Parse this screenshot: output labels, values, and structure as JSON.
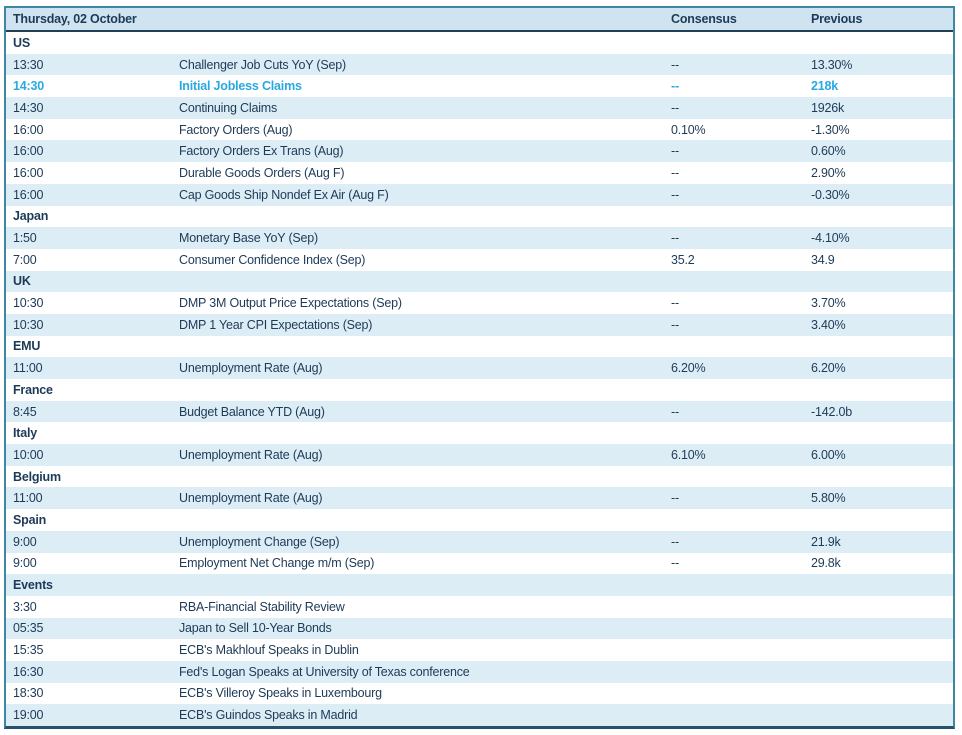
{
  "table": {
    "header": {
      "date": "Thursday, 02 October",
      "consensus": "Consensus",
      "previous": "Previous"
    },
    "colors": {
      "text": "#1d3a57",
      "highlight_text": "#29a9e1",
      "row_alt_bg": "#dcedf6",
      "header_bg": "#cfe4f0",
      "frame_border": "#3d87a0",
      "header_rule": "#1e3f54"
    },
    "rows": [
      {
        "type": "section",
        "label": "US"
      },
      {
        "type": "data",
        "time": "13:30",
        "event": "Challenger Job Cuts YoY (Sep)",
        "consensus": "--",
        "previous": "13.30%"
      },
      {
        "type": "data",
        "time": "14:30",
        "event": "Initial Jobless Claims",
        "consensus": "--",
        "previous": "218k",
        "highlight": true
      },
      {
        "type": "data",
        "time": "14:30",
        "event": "Continuing Claims",
        "consensus": "--",
        "previous": "1926k"
      },
      {
        "type": "data",
        "time": "16:00",
        "event": "Factory Orders (Aug)",
        "consensus": "0.10%",
        "previous": "-1.30%"
      },
      {
        "type": "data",
        "time": "16:00",
        "event": "Factory Orders Ex Trans (Aug)",
        "consensus": "--",
        "previous": "0.60%"
      },
      {
        "type": "data",
        "time": "16:00",
        "event": "Durable Goods Orders (Aug F)",
        "consensus": "--",
        "previous": "2.90%"
      },
      {
        "type": "data",
        "time": "16:00",
        "event": "Cap Goods Ship Nondef Ex Air (Aug F)",
        "consensus": "--",
        "previous": "-0.30%"
      },
      {
        "type": "section",
        "label": "Japan"
      },
      {
        "type": "data",
        "time": "1:50",
        "event": "Monetary Base YoY (Sep)",
        "consensus": "--",
        "previous": "-4.10%"
      },
      {
        "type": "data",
        "time": "7:00",
        "event": "Consumer Confidence Index (Sep)",
        "consensus": "35.2",
        "previous": "34.9"
      },
      {
        "type": "section",
        "label": "UK"
      },
      {
        "type": "data",
        "time": "10:30",
        "event": "DMP 3M Output Price Expectations (Sep)",
        "consensus": "--",
        "previous": "3.70%"
      },
      {
        "type": "data",
        "time": "10:30",
        "event": "DMP 1 Year CPI Expectations (Sep)",
        "consensus": "--",
        "previous": "3.40%"
      },
      {
        "type": "section",
        "label": "EMU"
      },
      {
        "type": "data",
        "time": "11:00",
        "event": "Unemployment Rate (Aug)",
        "consensus": "6.20%",
        "previous": "6.20%"
      },
      {
        "type": "section",
        "label": "France"
      },
      {
        "type": "data",
        "time": "8:45",
        "event": "Budget Balance YTD (Aug)",
        "consensus": "--",
        "previous": "-142.0b"
      },
      {
        "type": "section",
        "label": "Italy"
      },
      {
        "type": "data",
        "time": "10:00",
        "event": "Unemployment Rate (Aug)",
        "consensus": "6.10%",
        "previous": "6.00%"
      },
      {
        "type": "section",
        "label": "Belgium"
      },
      {
        "type": "data",
        "time": "11:00",
        "event": "Unemployment Rate (Aug)",
        "consensus": "--",
        "previous": "5.80%"
      },
      {
        "type": "section",
        "label": "Spain"
      },
      {
        "type": "data",
        "time": "9:00",
        "event": "Unemployment Change (Sep)",
        "consensus": "--",
        "previous": "21.9k"
      },
      {
        "type": "data",
        "time": "9:00",
        "event": "Employment Net Change m/m (Sep)",
        "consensus": "--",
        "previous": "29.8k"
      },
      {
        "type": "section",
        "label": "Events"
      },
      {
        "type": "data",
        "time": "3:30",
        "event": "RBA-Financial Stability Review",
        "consensus": "",
        "previous": ""
      },
      {
        "type": "data",
        "time": "05:35",
        "event": "Japan to Sell 10-Year Bonds",
        "consensus": "",
        "previous": ""
      },
      {
        "type": "data",
        "time": "15:35",
        "event": "ECB's Makhlouf Speaks in Dublin",
        "consensus": "",
        "previous": ""
      },
      {
        "type": "data",
        "time": "16:30",
        "event": "Fed's Logan Speaks at University of Texas conference",
        "consensus": "",
        "previous": ""
      },
      {
        "type": "data",
        "time": "18:30",
        "event": "ECB's Villeroy Speaks in Luxembourg",
        "consensus": "",
        "previous": ""
      },
      {
        "type": "data",
        "time": "19:00",
        "event": "ECB's Guindos Speaks in Madrid",
        "consensus": "",
        "previous": ""
      }
    ]
  }
}
